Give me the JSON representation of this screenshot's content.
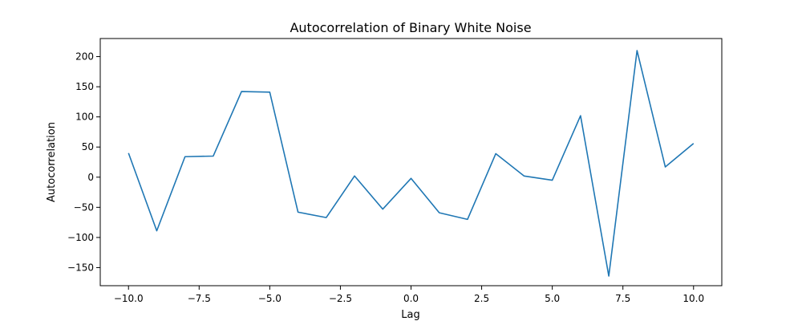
{
  "chart_data": {
    "type": "line",
    "title": "Autocorrelation of Binary White Noise",
    "xlabel": "Lag",
    "ylabel": "Autocorrelation",
    "xlim": [
      -11,
      11
    ],
    "ylim": [
      -180,
      230
    ],
    "grid": false,
    "legend": "none",
    "x_ticks": [
      -10,
      -7.5,
      -5,
      -2.5,
      0,
      2.5,
      5,
      7.5,
      10
    ],
    "x_tick_labels": [
      "−10.0",
      "−7.5",
      "−5.0",
      "−2.5",
      "0.0",
      "2.5",
      "5.0",
      "7.5",
      "10.0"
    ],
    "y_ticks": [
      -150,
      -100,
      -50,
      0,
      50,
      100,
      150,
      200
    ],
    "y_tick_labels": [
      "−150",
      "−100",
      "−50",
      "0",
      "50",
      "100",
      "150",
      "200"
    ],
    "series": [
      {
        "color": "#1f77b4",
        "x": [
          -10,
          -9,
          -8,
          -7,
          -6,
          -5,
          -4,
          -3,
          -2,
          -1,
          0,
          1,
          2,
          3,
          4,
          5,
          6,
          7,
          8,
          9,
          10
        ],
        "values": [
          40,
          -89,
          34,
          35,
          142,
          141,
          -58,
          -67,
          2,
          -53,
          -2,
          -59,
          -70,
          39,
          2,
          -5,
          102,
          -164,
          210,
          17,
          56
        ]
      }
    ]
  }
}
